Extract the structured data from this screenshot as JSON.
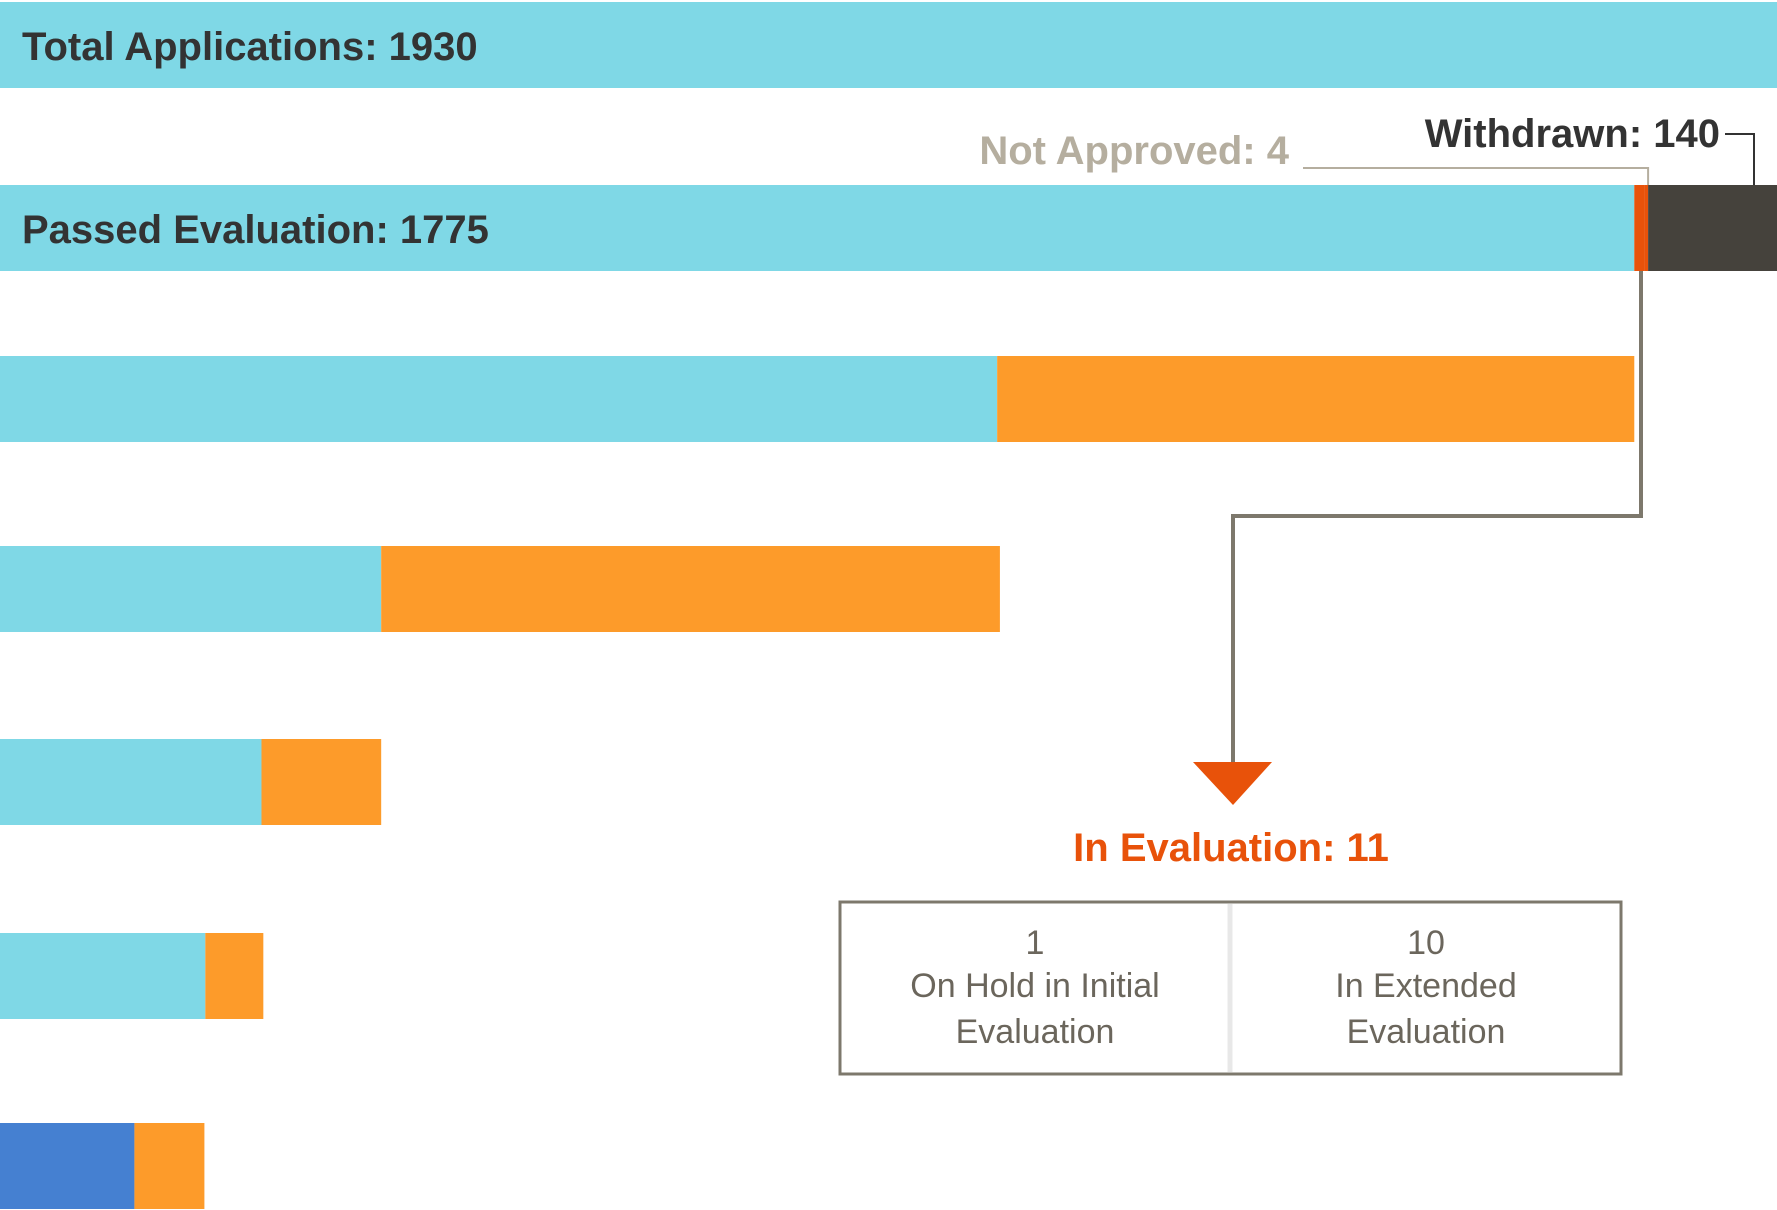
{
  "chart_data": {
    "type": "funnel",
    "xlim": [
      0,
      1930
    ],
    "rows": [
      {
        "label": "Total Applications: 1930",
        "segments": [
          {
            "value": 1930,
            "color": "#7fd8e6"
          }
        ]
      },
      {
        "label": "Passed Evaluation: 1775",
        "segments": [
          {
            "value": 1775,
            "color": "#7fd8e6"
          },
          {
            "value": 11,
            "color": "#e8520a"
          },
          {
            "value": 4,
            "color": "#e8520a"
          },
          {
            "value": 140,
            "color": "#45423c"
          }
        ]
      },
      {
        "segments": [
          {
            "value": 1083,
            "color": "#7fd8e6"
          },
          {
            "value": 692,
            "color": "#fd9b2a"
          }
        ]
      },
      {
        "segments": [
          {
            "value": 414,
            "color": "#7fd8e6"
          },
          {
            "value": 672,
            "color": "#fd9b2a"
          }
        ]
      },
      {
        "segments": [
          {
            "value": 284,
            "color": "#7fd8e6"
          },
          {
            "value": 130,
            "color": "#fd9b2a"
          }
        ]
      },
      {
        "segments": [
          {
            "value": 223,
            "color": "#7fd8e6"
          },
          {
            "value": 63,
            "color": "#fd9b2a"
          }
        ]
      },
      {
        "segments": [
          {
            "value": 146,
            "color": "#4580d1"
          },
          {
            "value": 76,
            "color": "#fd9b2a"
          }
        ]
      }
    ],
    "annotations": [
      {
        "text": "Not Approved: 4",
        "color": "#b5ae9f"
      },
      {
        "text": "Withdrawn: 140",
        "color": "#333333"
      }
    ],
    "breakdown": {
      "title": "In Evaluation: 11",
      "title_color": "#e8520a",
      "items": [
        {
          "value": 1,
          "lines": [
            "On Hold in Initial",
            "Evaluation"
          ]
        },
        {
          "value": 10,
          "lines": [
            "In Extended",
            "Evaluation"
          ]
        }
      ]
    }
  }
}
